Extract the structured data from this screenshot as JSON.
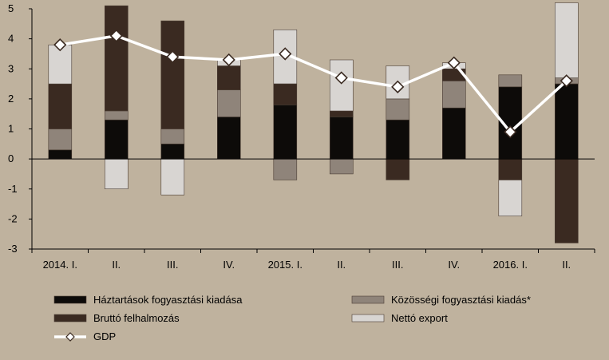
{
  "chart_data": {
    "type": "bar",
    "stacked": true,
    "categories": [
      "2014. I.",
      "II.",
      "III.",
      "IV.",
      "2015. I.",
      "II.",
      "III.",
      "IV.",
      "2016. I.",
      "II."
    ],
    "ylim": [
      -3,
      5
    ],
    "yticks": [
      "5",
      "4",
      "3",
      "2",
      "1",
      "0",
      "-1",
      "-2",
      "-3"
    ],
    "ytick_values": [
      5,
      4,
      3,
      2,
      1,
      0,
      -1,
      -2,
      -3
    ],
    "grid": false,
    "legend_position": "bottom",
    "series": [
      {
        "name": "Háztartások fogyasztási kiadása",
        "color": "#0d0b09",
        "values": [
          0.3,
          1.3,
          0.5,
          1.4,
          1.8,
          1.4,
          1.3,
          1.7,
          2.4,
          2.5
        ]
      },
      {
        "name": "Közösségi fogyasztási kiadás*",
        "color": "#8f847a",
        "values": [
          0.7,
          0.3,
          0.5,
          0.9,
          -0.7,
          -0.5,
          0.7,
          0.9,
          0.4,
          0.2
        ]
      },
      {
        "name": "Bruttó felhalmozás",
        "color": "#3a2a21",
        "values": [
          1.5,
          3.5,
          3.6,
          0.8,
          0.7,
          0.2,
          -0.7,
          0.4,
          -0.7,
          -2.8
        ]
      },
      {
        "name": "Nettó export",
        "color": "#d8d5d2",
        "values": [
          1.3,
          -1.0,
          -1.2,
          0.2,
          1.8,
          1.7,
          1.1,
          0.2,
          -1.2,
          2.5
        ]
      }
    ],
    "line": {
      "name": "GDP",
      "color": "#ffffff",
      "values": [
        3.8,
        4.1,
        3.4,
        3.3,
        3.5,
        2.7,
        2.4,
        3.2,
        0.9,
        2.6
      ]
    }
  }
}
